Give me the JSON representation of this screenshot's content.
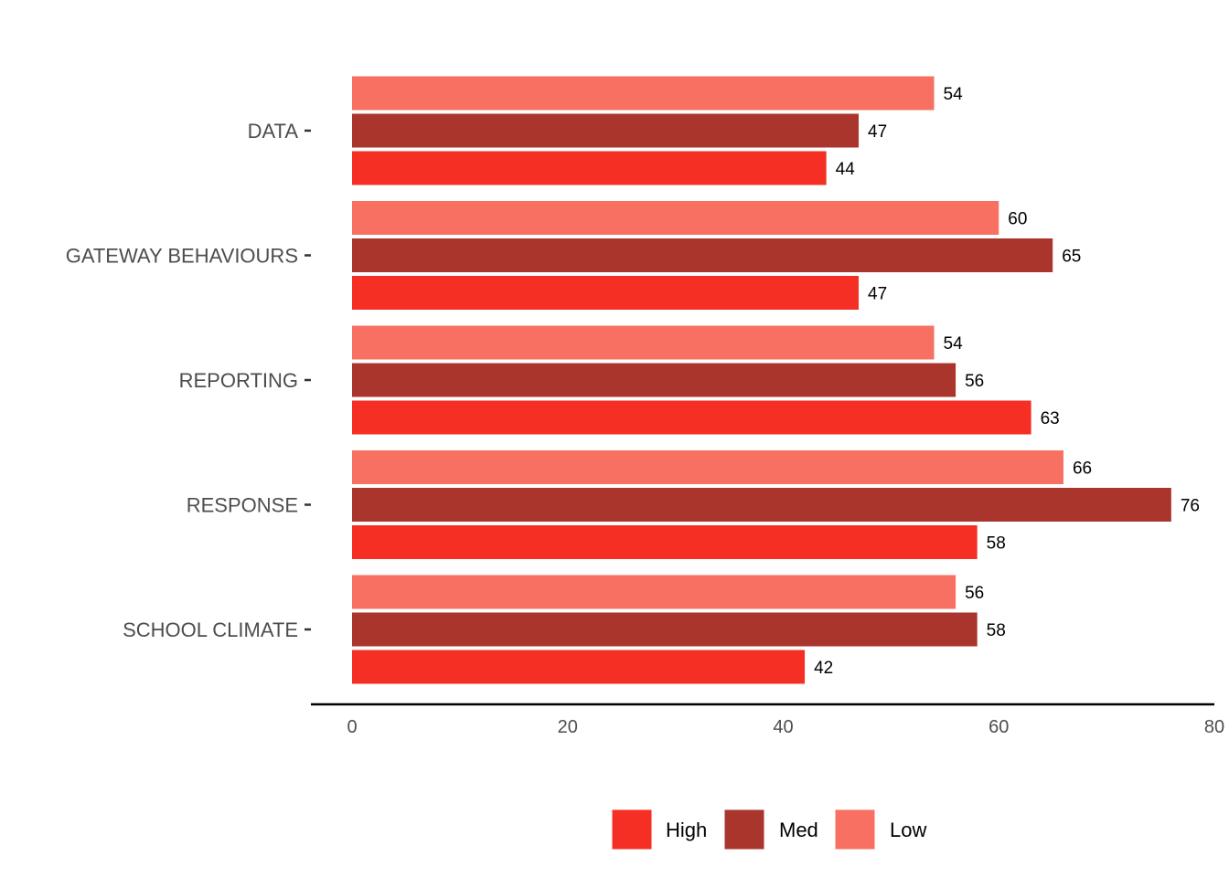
{
  "chart_data": {
    "type": "bar",
    "orientation": "horizontal",
    "categories": [
      "DATA",
      "GATEWAY BEHAVIOURS",
      "REPORTING",
      "RESPONSE",
      "SCHOOL CLIMATE"
    ],
    "series": [
      {
        "name": "High",
        "color": "#f52f24",
        "values": [
          44,
          47,
          63,
          58,
          42
        ]
      },
      {
        "name": "Med",
        "color": "#aa352c",
        "values": [
          47,
          65,
          56,
          76,
          58
        ]
      },
      {
        "name": "Low",
        "color": "#f87061",
        "values": [
          54,
          60,
          54,
          66,
          56
        ]
      }
    ],
    "xlim": [
      0,
      80
    ],
    "xticks": [
      0,
      20,
      40,
      60,
      80
    ],
    "title": "",
    "xlabel": "",
    "ylabel": "",
    "grid": false,
    "legend_position": "bottom"
  }
}
